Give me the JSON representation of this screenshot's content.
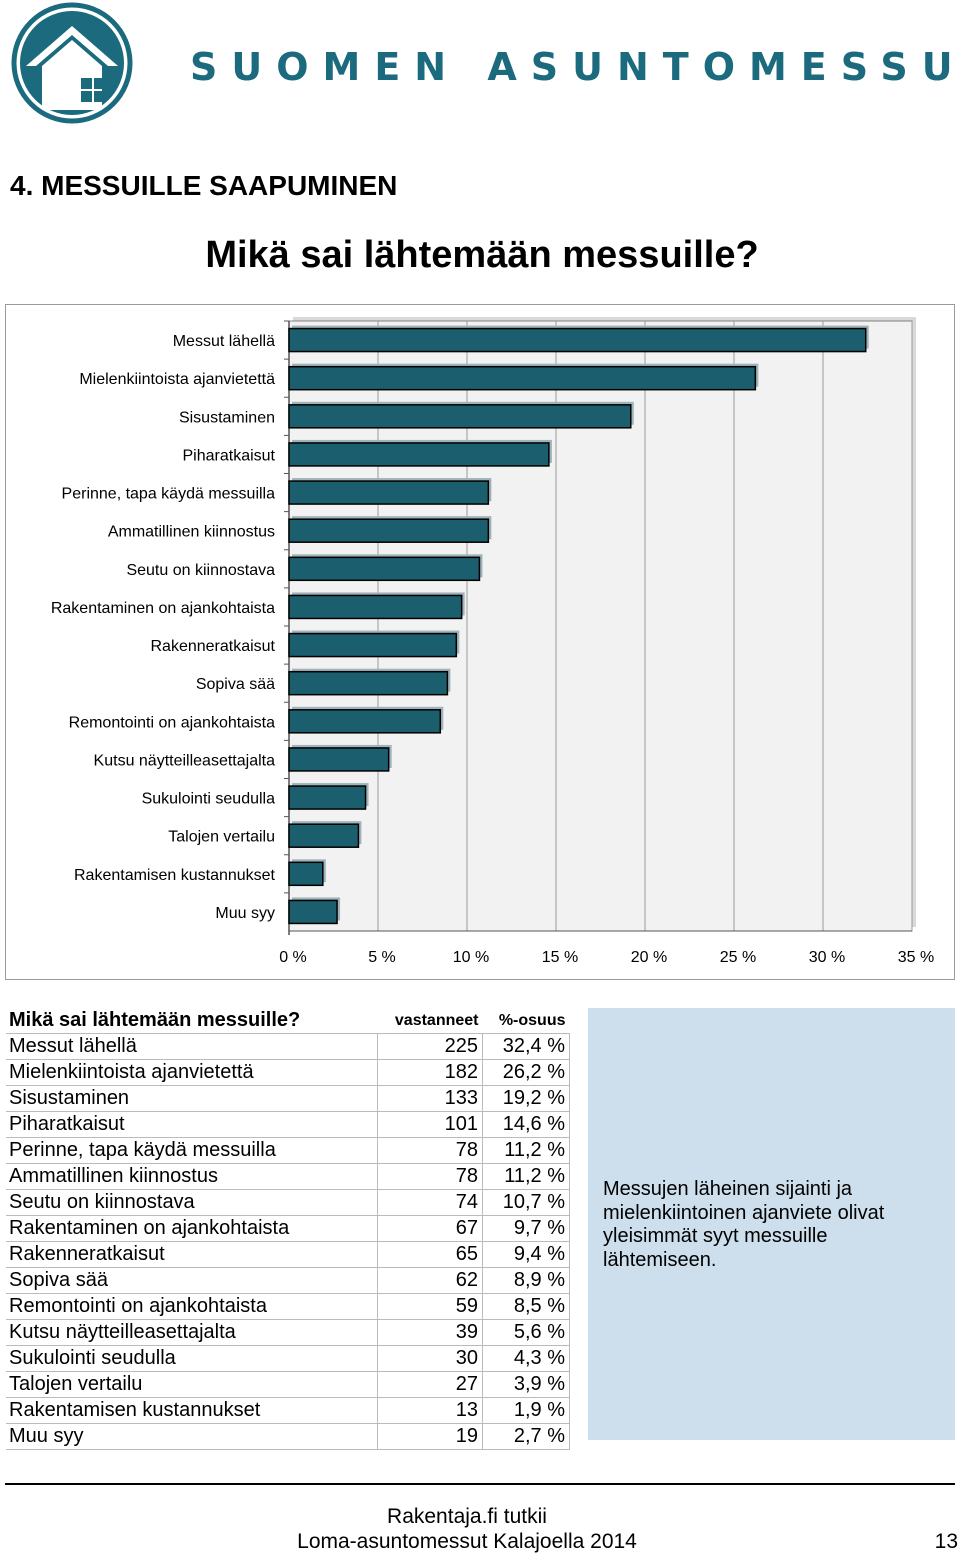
{
  "header": {
    "brand": "SUOMEN ASUNTOMESSUT",
    "section_title": "4. MESSUILLE SAAPUMINEN",
    "chart_title": "Mikä sai lähtemään messuille?"
  },
  "colors": {
    "brand": "#1b6a7d",
    "bar": "#1b5e6d",
    "note_bg": "#cddfec"
  },
  "chart_data": {
    "type": "bar",
    "orientation": "horizontal",
    "title": "Mikä sai lähtemään messuille?",
    "categories": [
      "Messut lähellä",
      "Mielenkiintoista ajanvietettä",
      "Sisustaminen",
      "Piharatkaisut",
      "Perinne, tapa käydä messuilla",
      "Ammatillinen kiinnostus",
      "Seutu on kiinnostava",
      "Rakentaminen on ajankohtaista",
      "Rakenneratkaisut",
      "Sopiva sää",
      "Remontointi on ajankohtaista",
      "Kutsu näytteilleasettajalta",
      "Sukulointi seudulla",
      "Talojen vertailu",
      "Rakentamisen kustannukset",
      "Muu syy"
    ],
    "values": [
      32.4,
      26.2,
      19.2,
      14.6,
      11.2,
      11.2,
      10.7,
      9.7,
      9.4,
      8.9,
      8.5,
      5.6,
      4.3,
      3.9,
      1.9,
      2.7
    ],
    "xlim": [
      0,
      35
    ],
    "x_ticks": [
      "0 %",
      "5 %",
      "10 %",
      "15 %",
      "20 %",
      "25 %",
      "30 %",
      "35 %"
    ],
    "x_tick_values": [
      0,
      5,
      10,
      15,
      20,
      25,
      30,
      35
    ],
    "grid": true,
    "legend": "none"
  },
  "table": {
    "title": "Mikä sai lähtemään messuille?",
    "col_count": "vastanneet",
    "col_share": "%-osuus",
    "rows": [
      {
        "label": "Messut lähellä",
        "count": "225",
        "share": "32,4 %"
      },
      {
        "label": "Mielenkiintoista ajanvietettä",
        "count": "182",
        "share": "26,2 %"
      },
      {
        "label": "Sisustaminen",
        "count": "133",
        "share": "19,2 %"
      },
      {
        "label": "Piharatkaisut",
        "count": "101",
        "share": "14,6 %"
      },
      {
        "label": "Perinne, tapa käydä messuilla",
        "count": "78",
        "share": "11,2 %"
      },
      {
        "label": "Ammatillinen kiinnostus",
        "count": "78",
        "share": "11,2 %"
      },
      {
        "label": "Seutu on kiinnostava",
        "count": "74",
        "share": "10,7 %"
      },
      {
        "label": "Rakentaminen on ajankohtaista",
        "count": "67",
        "share": "9,7 %"
      },
      {
        "label": "Rakenneratkaisut",
        "count": "65",
        "share": "9,4 %"
      },
      {
        "label": "Sopiva sää",
        "count": "62",
        "share": "8,9 %"
      },
      {
        "label": "Remontointi on ajankohtaista",
        "count": "59",
        "share": "8,5 %"
      },
      {
        "label": "Kutsu näytteilleasettajalta",
        "count": "39",
        "share": "5,6 %"
      },
      {
        "label": "Sukulointi seudulla",
        "count": "30",
        "share": "4,3 %"
      },
      {
        "label": "Talojen vertailu",
        "count": "27",
        "share": "3,9 %"
      },
      {
        "label": "Rakentamisen kustannukset",
        "count": "13",
        "share": "1,9 %"
      },
      {
        "label": "Muu syy",
        "count": "19",
        "share": "2,7 %"
      }
    ]
  },
  "note": "Messujen läheinen sijainti ja mielenkiintoinen ajanviete olivat yleisimmät syyt messuille lähtemiseen.",
  "footer": {
    "line1": "Rakentaja.fi tutkii",
    "line2": "Loma-asuntomessut Kalajoella 2014",
    "page_number": "13"
  }
}
